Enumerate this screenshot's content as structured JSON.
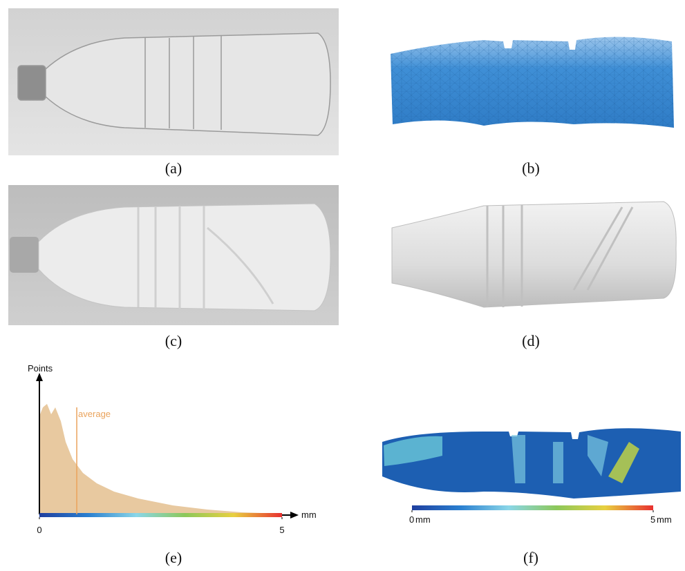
{
  "panels": [
    {
      "caption": "(a)"
    },
    {
      "caption": "(b)"
    },
    {
      "caption": "(c)"
    },
    {
      "caption": "(d)"
    },
    {
      "caption": "(e)"
    },
    {
      "caption": "(f)"
    }
  ],
  "histogram": {
    "y_label": "Points",
    "x_label": "mm",
    "xlim": [
      0,
      5
    ],
    "xticks": [
      0,
      5
    ],
    "average": {
      "label": "average",
      "value": 0.77
    }
  },
  "colorbar": {
    "xlim": [
      0,
      5
    ],
    "xticks": [
      0,
      5
    ],
    "unit": "mm"
  }
}
